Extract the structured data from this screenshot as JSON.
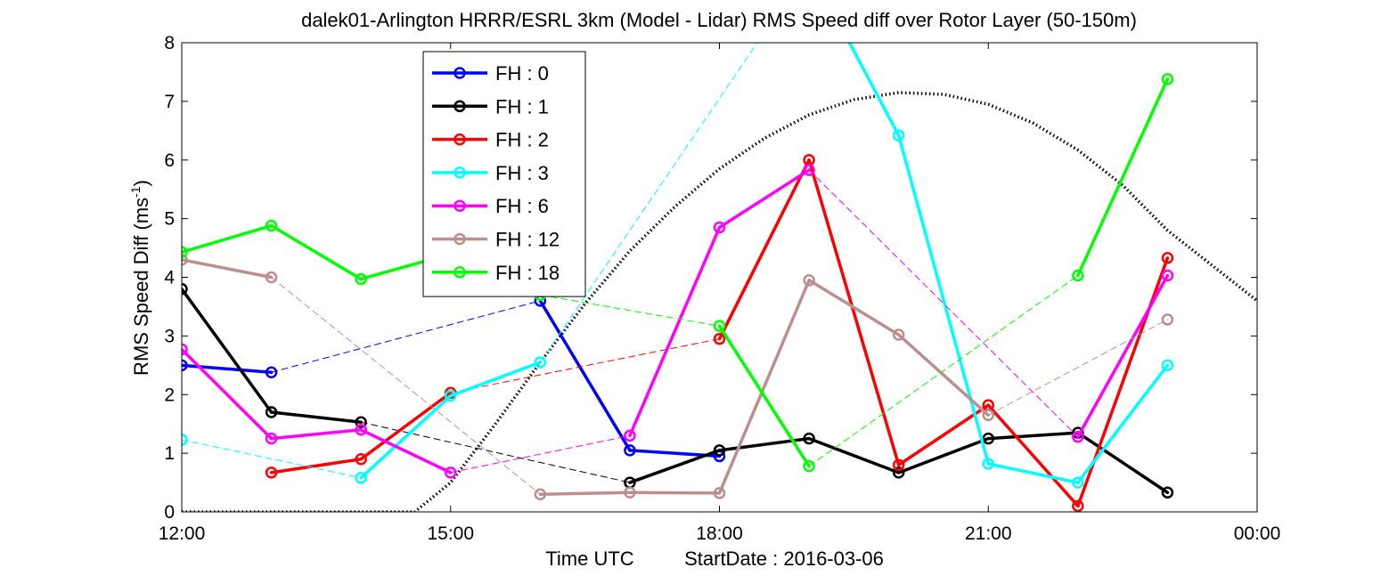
{
  "chart_data": {
    "type": "line",
    "title": "dalek01-Arlington HRRR/ESRL 3km (Model - Lidar) RMS Speed diff over Rotor Layer (50-150m)",
    "xlabel": "Time UTC",
    "xlabel_extra": "StartDate : 2016-03-06",
    "ylabel_main": "RMS Speed Diff (ms",
    "ylabel_sup": "-1",
    "ylabel_close": ")",
    "xlim": [
      12,
      24
    ],
    "ylim": [
      0,
      8
    ],
    "x_ticks": [
      {
        "value": 12,
        "label": "12:00"
      },
      {
        "value": 15,
        "label": "15:00"
      },
      {
        "value": 18,
        "label": "18:00"
      },
      {
        "value": 21,
        "label": "21:00"
      },
      {
        "value": 24,
        "label": "00:00"
      }
    ],
    "y_ticks": [
      0,
      1,
      2,
      3,
      4,
      5,
      6,
      7,
      8
    ],
    "legend_position": "top-left",
    "series": [
      {
        "name": "FH : 0",
        "color": "#0000ff",
        "x": [
          12,
          13,
          16,
          17,
          18
        ],
        "y": [
          2.5,
          2.38,
          3.6,
          1.05,
          0.95
        ]
      },
      {
        "name": "FH : 1",
        "color": "#000000",
        "x": [
          12,
          13,
          14,
          17,
          18,
          19,
          20,
          21,
          22,
          23
        ],
        "y": [
          3.8,
          1.7,
          1.53,
          0.5,
          1.05,
          1.25,
          0.67,
          1.25,
          1.35,
          0.33
        ]
      },
      {
        "name": "FH : 2",
        "color": "#ff0000",
        "x": [
          13,
          14,
          15,
          18,
          19,
          20,
          21,
          22,
          23
        ],
        "y": [
          0.67,
          0.9,
          2.03,
          2.95,
          6.0,
          0.8,
          1.82,
          0.1,
          4.33
        ]
      },
      {
        "name": "FH : 3",
        "color": "#00ffff",
        "x": [
          12,
          14,
          15,
          16,
          19,
          20,
          21,
          22,
          23
        ],
        "y": [
          1.23,
          0.58,
          1.98,
          2.55,
          9.3,
          6.42,
          0.82,
          0.5,
          2.5
        ]
      },
      {
        "name": "FH : 6",
        "color": "#ff00ff",
        "x": [
          12,
          13,
          14,
          15,
          17,
          18,
          19,
          22,
          23
        ],
        "y": [
          2.77,
          1.25,
          1.4,
          0.67,
          1.3,
          4.85,
          5.83,
          1.28,
          4.03
        ]
      },
      {
        "name": "FH : 12",
        "color": "#bc8f8f",
        "x": [
          12,
          13,
          16,
          17,
          18,
          19,
          20,
          21,
          23
        ],
        "y": [
          4.3,
          4.0,
          0.3,
          0.33,
          0.32,
          3.95,
          3.02,
          1.65,
          3.28
        ]
      },
      {
        "name": "FH : 18",
        "color": "#00ff00",
        "x": [
          12,
          13,
          14,
          15,
          16,
          18,
          19,
          22,
          23
        ],
        "y": [
          4.43,
          4.88,
          3.97,
          4.4,
          3.7,
          3.17,
          0.78,
          4.03,
          7.38
        ]
      }
    ],
    "reference_curve": {
      "style": "dotted",
      "color": "#000000",
      "x": [
        12,
        14.6,
        15,
        15.5,
        16,
        16.5,
        17,
        17.5,
        18,
        18.5,
        19,
        19.5,
        20,
        20.5,
        21,
        21.5,
        22,
        22.5,
        23,
        23.5,
        24
      ],
      "y": [
        0,
        0,
        0.5,
        1.5,
        2.55,
        3.55,
        4.45,
        5.2,
        5.85,
        6.37,
        6.77,
        7.03,
        7.15,
        7.12,
        6.95,
        6.63,
        6.17,
        5.57,
        4.8,
        4.2,
        3.6
      ]
    }
  }
}
